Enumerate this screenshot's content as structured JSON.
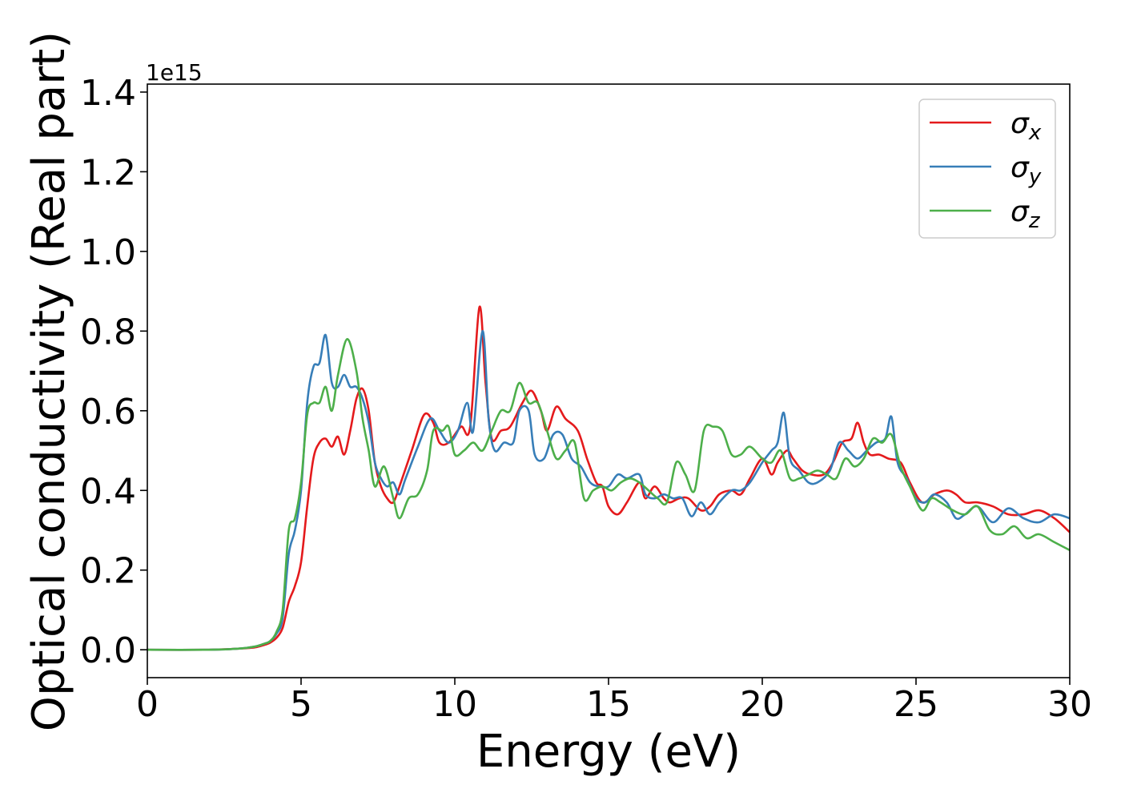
{
  "chart_data": {
    "type": "line",
    "title": "",
    "xlabel": "Energy (eV)",
    "ylabel": "Optical conductivity (Real part)",
    "y_offset_label": "1e15",
    "xlim": [
      0,
      30
    ],
    "ylim": [
      -0.07,
      1.42
    ],
    "x_ticks": [
      0,
      5,
      10,
      15,
      20,
      25,
      30
    ],
    "x_tick_labels": [
      "0",
      "5",
      "10",
      "15",
      "20",
      "25",
      "30"
    ],
    "y_ticks": [
      0.0,
      0.2,
      0.4,
      0.6,
      0.8,
      1.0,
      1.2,
      1.4
    ],
    "y_tick_labels": [
      "0.0",
      "0.2",
      "0.4",
      "0.6",
      "0.8",
      "1.0",
      "1.2",
      "1.4"
    ],
    "grid": false,
    "legend_position": "top-right",
    "series": [
      {
        "name": "σx",
        "legend_base": "σ",
        "legend_sub": "x",
        "color": "#e41a1c",
        "points": [
          [
            0,
            0
          ],
          [
            2,
            0
          ],
          [
            3,
            0.003
          ],
          [
            3.5,
            0.006
          ],
          [
            3.8,
            0.012
          ],
          [
            4.0,
            0.018
          ],
          [
            4.2,
            0.03
          ],
          [
            4.4,
            0.055
          ],
          [
            4.6,
            0.12
          ],
          [
            4.8,
            0.16
          ],
          [
            5.0,
            0.22
          ],
          [
            5.2,
            0.36
          ],
          [
            5.4,
            0.48
          ],
          [
            5.6,
            0.52
          ],
          [
            5.8,
            0.53
          ],
          [
            6.0,
            0.51
          ],
          [
            6.2,
            0.535
          ],
          [
            6.4,
            0.49
          ],
          [
            6.6,
            0.55
          ],
          [
            6.8,
            0.63
          ],
          [
            7.0,
            0.655
          ],
          [
            7.2,
            0.6
          ],
          [
            7.4,
            0.47
          ],
          [
            7.6,
            0.41
          ],
          [
            7.8,
            0.38
          ],
          [
            8.0,
            0.37
          ],
          [
            8.2,
            0.41
          ],
          [
            8.6,
            0.5
          ],
          [
            9.0,
            0.59
          ],
          [
            9.3,
            0.57
          ],
          [
            9.5,
            0.52
          ],
          [
            9.8,
            0.52
          ],
          [
            10.2,
            0.56
          ],
          [
            10.5,
            0.56
          ],
          [
            10.8,
            0.86
          ],
          [
            11.0,
            0.67
          ],
          [
            11.2,
            0.53
          ],
          [
            11.5,
            0.55
          ],
          [
            11.8,
            0.56
          ],
          [
            12.2,
            0.62
          ],
          [
            12.5,
            0.65
          ],
          [
            12.8,
            0.6
          ],
          [
            13.0,
            0.55
          ],
          [
            13.3,
            0.61
          ],
          [
            13.6,
            0.58
          ],
          [
            14.0,
            0.55
          ],
          [
            14.3,
            0.48
          ],
          [
            14.6,
            0.42
          ],
          [
            14.8,
            0.41
          ],
          [
            15.0,
            0.36
          ],
          [
            15.3,
            0.34
          ],
          [
            15.6,
            0.37
          ],
          [
            16.0,
            0.42
          ],
          [
            16.2,
            0.38
          ],
          [
            16.5,
            0.41
          ],
          [
            16.8,
            0.38
          ],
          [
            17.0,
            0.37
          ],
          [
            17.3,
            0.38
          ],
          [
            17.6,
            0.38
          ],
          [
            18.0,
            0.35
          ],
          [
            18.3,
            0.36
          ],
          [
            18.6,
            0.39
          ],
          [
            19.0,
            0.4
          ],
          [
            19.3,
            0.39
          ],
          [
            19.6,
            0.43
          ],
          [
            20.0,
            0.48
          ],
          [
            20.3,
            0.44
          ],
          [
            20.5,
            0.47
          ],
          [
            20.8,
            0.5
          ],
          [
            21.0,
            0.48
          ],
          [
            21.3,
            0.45
          ],
          [
            21.6,
            0.44
          ],
          [
            22.0,
            0.44
          ],
          [
            22.3,
            0.47
          ],
          [
            22.6,
            0.52
          ],
          [
            22.9,
            0.53
          ],
          [
            23.1,
            0.57
          ],
          [
            23.3,
            0.52
          ],
          [
            23.5,
            0.49
          ],
          [
            23.8,
            0.49
          ],
          [
            24.1,
            0.48
          ],
          [
            24.5,
            0.47
          ],
          [
            24.8,
            0.42
          ],
          [
            25.2,
            0.37
          ],
          [
            25.6,
            0.39
          ],
          [
            26.0,
            0.4
          ],
          [
            26.3,
            0.39
          ],
          [
            26.6,
            0.37
          ],
          [
            27.0,
            0.37
          ],
          [
            27.5,
            0.36
          ],
          [
            28.0,
            0.34
          ],
          [
            28.5,
            0.34
          ],
          [
            29.0,
            0.35
          ],
          [
            29.5,
            0.33
          ],
          [
            30.0,
            0.295
          ]
        ]
      },
      {
        "name": "σy",
        "legend_base": "σ",
        "legend_sub": "y",
        "color": "#377eb8",
        "points": [
          [
            0,
            0
          ],
          [
            2,
            0
          ],
          [
            3,
            0.003
          ],
          [
            3.5,
            0.008
          ],
          [
            3.8,
            0.015
          ],
          [
            4.0,
            0.022
          ],
          [
            4.2,
            0.04
          ],
          [
            4.4,
            0.08
          ],
          [
            4.6,
            0.24
          ],
          [
            4.8,
            0.3
          ],
          [
            5.0,
            0.4
          ],
          [
            5.2,
            0.62
          ],
          [
            5.4,
            0.71
          ],
          [
            5.6,
            0.72
          ],
          [
            5.8,
            0.79
          ],
          [
            6.0,
            0.67
          ],
          [
            6.2,
            0.66
          ],
          [
            6.4,
            0.69
          ],
          [
            6.6,
            0.66
          ],
          [
            6.8,
            0.66
          ],
          [
            7.0,
            0.63
          ],
          [
            7.2,
            0.57
          ],
          [
            7.4,
            0.47
          ],
          [
            7.6,
            0.43
          ],
          [
            7.8,
            0.41
          ],
          [
            8.0,
            0.42
          ],
          [
            8.2,
            0.39
          ],
          [
            8.4,
            0.43
          ],
          [
            8.8,
            0.51
          ],
          [
            9.2,
            0.58
          ],
          [
            9.5,
            0.55
          ],
          [
            9.8,
            0.52
          ],
          [
            10.1,
            0.55
          ],
          [
            10.4,
            0.62
          ],
          [
            10.6,
            0.55
          ],
          [
            10.9,
            0.8
          ],
          [
            11.1,
            0.58
          ],
          [
            11.3,
            0.5
          ],
          [
            11.6,
            0.52
          ],
          [
            11.9,
            0.52
          ],
          [
            12.1,
            0.6
          ],
          [
            12.4,
            0.6
          ],
          [
            12.6,
            0.49
          ],
          [
            12.9,
            0.48
          ],
          [
            13.2,
            0.54
          ],
          [
            13.5,
            0.54
          ],
          [
            13.8,
            0.48
          ],
          [
            14.1,
            0.46
          ],
          [
            14.4,
            0.42
          ],
          [
            14.7,
            0.41
          ],
          [
            15.0,
            0.41
          ],
          [
            15.3,
            0.44
          ],
          [
            15.6,
            0.43
          ],
          [
            16.0,
            0.44
          ],
          [
            16.2,
            0.39
          ],
          [
            16.5,
            0.38
          ],
          [
            16.8,
            0.39
          ],
          [
            17.1,
            0.38
          ],
          [
            17.4,
            0.38
          ],
          [
            17.7,
            0.335
          ],
          [
            18.0,
            0.37
          ],
          [
            18.3,
            0.34
          ],
          [
            18.6,
            0.37
          ],
          [
            19.0,
            0.4
          ],
          [
            19.3,
            0.4
          ],
          [
            19.6,
            0.42
          ],
          [
            20.0,
            0.47
          ],
          [
            20.3,
            0.5
          ],
          [
            20.5,
            0.52
          ],
          [
            20.7,
            0.595
          ],
          [
            20.9,
            0.48
          ],
          [
            21.2,
            0.45
          ],
          [
            21.5,
            0.42
          ],
          [
            21.8,
            0.42
          ],
          [
            22.2,
            0.45
          ],
          [
            22.5,
            0.52
          ],
          [
            22.8,
            0.5
          ],
          [
            23.1,
            0.48
          ],
          [
            23.4,
            0.5
          ],
          [
            23.7,
            0.52
          ],
          [
            24.0,
            0.53
          ],
          [
            24.2,
            0.585
          ],
          [
            24.4,
            0.47
          ],
          [
            24.7,
            0.43
          ],
          [
            25.0,
            0.38
          ],
          [
            25.3,
            0.37
          ],
          [
            25.6,
            0.39
          ],
          [
            26.0,
            0.37
          ],
          [
            26.3,
            0.33
          ],
          [
            26.6,
            0.34
          ],
          [
            27.0,
            0.36
          ],
          [
            27.5,
            0.32
          ],
          [
            28.0,
            0.355
          ],
          [
            28.5,
            0.33
          ],
          [
            29.0,
            0.32
          ],
          [
            29.5,
            0.34
          ],
          [
            30.0,
            0.33
          ]
        ]
      },
      {
        "name": "σz",
        "legend_base": "σ",
        "legend_sub": "z",
        "color": "#4daf4a",
        "points": [
          [
            0,
            0
          ],
          [
            2,
            0
          ],
          [
            3,
            0.003
          ],
          [
            3.5,
            0.008
          ],
          [
            3.8,
            0.015
          ],
          [
            4.0,
            0.022
          ],
          [
            4.2,
            0.045
          ],
          [
            4.4,
            0.1
          ],
          [
            4.6,
            0.3
          ],
          [
            4.8,
            0.33
          ],
          [
            5.0,
            0.42
          ],
          [
            5.2,
            0.59
          ],
          [
            5.4,
            0.62
          ],
          [
            5.6,
            0.62
          ],
          [
            5.8,
            0.66
          ],
          [
            6.0,
            0.6
          ],
          [
            6.2,
            0.69
          ],
          [
            6.5,
            0.78
          ],
          [
            6.8,
            0.7
          ],
          [
            7.0,
            0.58
          ],
          [
            7.2,
            0.5
          ],
          [
            7.4,
            0.41
          ],
          [
            7.7,
            0.46
          ],
          [
            8.0,
            0.38
          ],
          [
            8.2,
            0.33
          ],
          [
            8.5,
            0.38
          ],
          [
            8.8,
            0.39
          ],
          [
            9.1,
            0.45
          ],
          [
            9.3,
            0.55
          ],
          [
            9.6,
            0.55
          ],
          [
            9.8,
            0.56
          ],
          [
            10.0,
            0.49
          ],
          [
            10.3,
            0.5
          ],
          [
            10.6,
            0.52
          ],
          [
            10.9,
            0.5
          ],
          [
            11.2,
            0.55
          ],
          [
            11.5,
            0.6
          ],
          [
            11.8,
            0.6
          ],
          [
            12.1,
            0.67
          ],
          [
            12.4,
            0.62
          ],
          [
            12.7,
            0.62
          ],
          [
            13.0,
            0.55
          ],
          [
            13.3,
            0.48
          ],
          [
            13.6,
            0.5
          ],
          [
            13.9,
            0.52
          ],
          [
            14.2,
            0.38
          ],
          [
            14.5,
            0.4
          ],
          [
            14.8,
            0.41
          ],
          [
            15.1,
            0.4
          ],
          [
            15.4,
            0.42
          ],
          [
            15.7,
            0.43
          ],
          [
            16.0,
            0.42
          ],
          [
            16.3,
            0.4
          ],
          [
            16.6,
            0.38
          ],
          [
            16.9,
            0.37
          ],
          [
            17.2,
            0.47
          ],
          [
            17.5,
            0.44
          ],
          [
            17.8,
            0.4
          ],
          [
            18.1,
            0.55
          ],
          [
            18.4,
            0.56
          ],
          [
            18.7,
            0.55
          ],
          [
            19.0,
            0.49
          ],
          [
            19.3,
            0.49
          ],
          [
            19.6,
            0.51
          ],
          [
            20.0,
            0.48
          ],
          [
            20.3,
            0.47
          ],
          [
            20.6,
            0.5
          ],
          [
            20.9,
            0.43
          ],
          [
            21.2,
            0.43
          ],
          [
            21.5,
            0.44
          ],
          [
            21.8,
            0.45
          ],
          [
            22.1,
            0.44
          ],
          [
            22.4,
            0.43
          ],
          [
            22.7,
            0.48
          ],
          [
            23.0,
            0.46
          ],
          [
            23.3,
            0.48
          ],
          [
            23.6,
            0.53
          ],
          [
            23.9,
            0.52
          ],
          [
            24.2,
            0.54
          ],
          [
            24.5,
            0.46
          ],
          [
            24.8,
            0.41
          ],
          [
            25.2,
            0.35
          ],
          [
            25.5,
            0.38
          ],
          [
            25.8,
            0.37
          ],
          [
            26.2,
            0.35
          ],
          [
            26.6,
            0.34
          ],
          [
            27.0,
            0.36
          ],
          [
            27.4,
            0.3
          ],
          [
            27.8,
            0.29
          ],
          [
            28.2,
            0.31
          ],
          [
            28.6,
            0.28
          ],
          [
            29.0,
            0.29
          ],
          [
            29.5,
            0.27
          ],
          [
            30.0,
            0.25
          ]
        ]
      }
    ]
  }
}
